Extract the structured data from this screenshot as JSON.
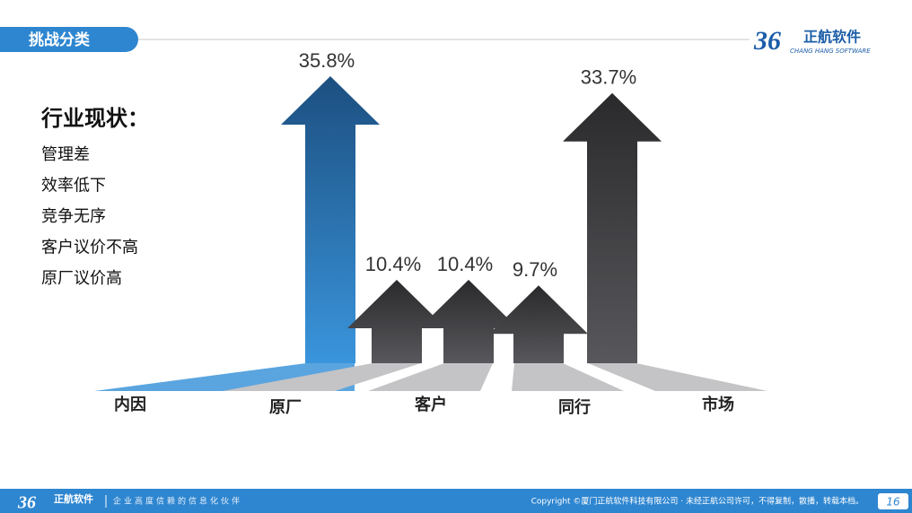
{
  "header": {
    "title": "挑战分类",
    "logo_mark": "36",
    "logo_name": "正航软件",
    "logo_sub": "CHANG HANG SOFTWARE"
  },
  "status": {
    "title": "行业现状：",
    "items": [
      "管理差",
      "效率低下",
      "竞争无序",
      "客户议价不高",
      "原厂议价高"
    ]
  },
  "chart_data": {
    "type": "arrow",
    "categories": [
      "内因",
      "原厂",
      "客户",
      "同行",
      "市场"
    ],
    "values": [
      35.8,
      10.4,
      10.4,
      9.7,
      33.7
    ],
    "value_labels": [
      "35.8%",
      "10.4%",
      "10.4%",
      "9.7%",
      "33.7%"
    ],
    "colors": [
      "#2f7fc8",
      "#3b3b3e",
      "#3b3b3e",
      "#3b3b3e",
      "#3b3b3e"
    ]
  },
  "footer": {
    "logo_mark": "36",
    "logo_name": "正航软件",
    "slogan": "企业高度信赖的信息化伙伴",
    "copyright": "Copyright ©厦门正航软件科技有限公司 · 未经正航公司许可，不得复制，散播，转载本档。",
    "page": "16"
  }
}
